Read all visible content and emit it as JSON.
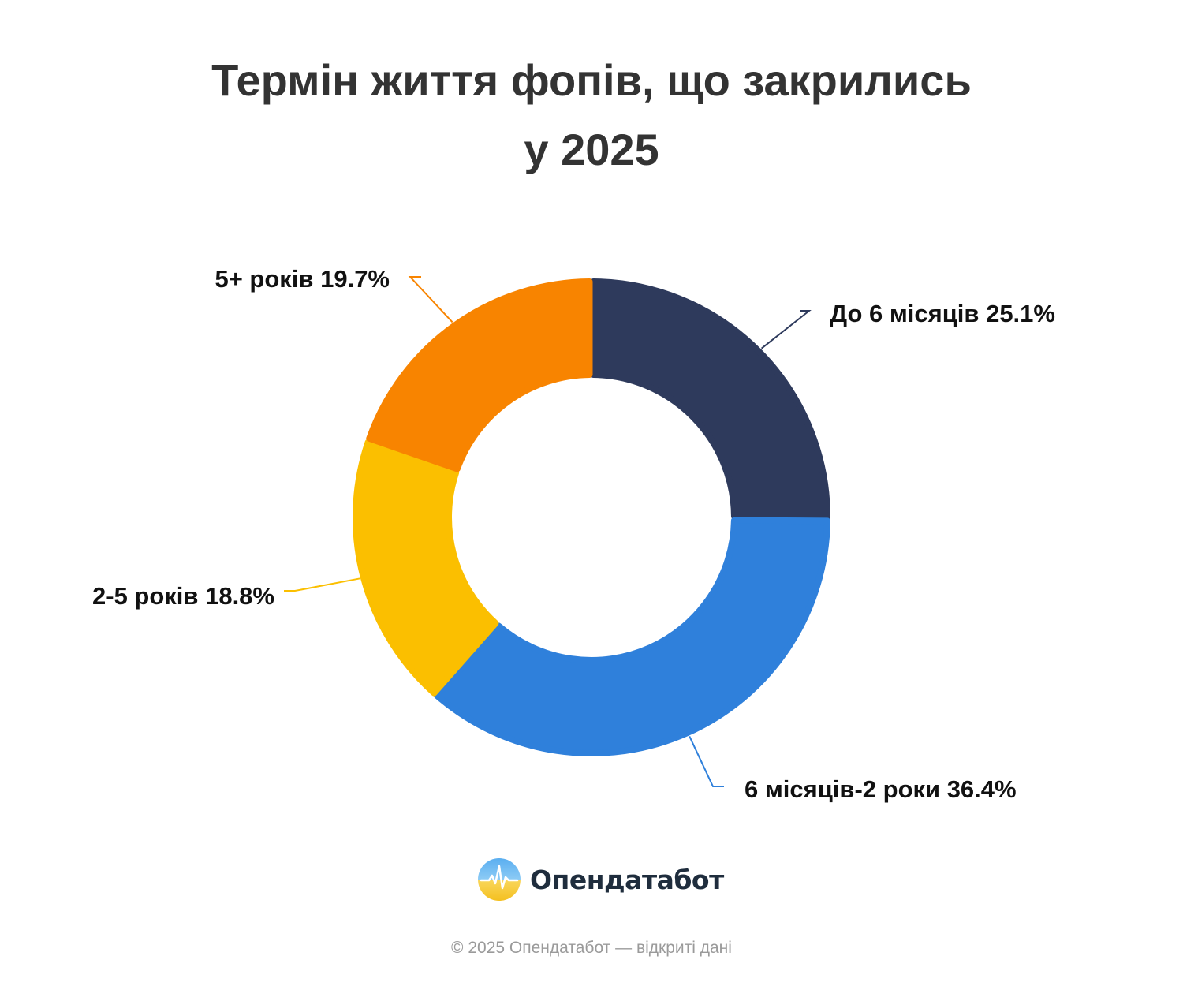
{
  "title": {
    "line1": "Термін життя фопів, що закрились",
    "line2": "у 2025"
  },
  "chart_data": {
    "type": "pie",
    "variant": "donut",
    "title": "Термін життя фопів, що закрились у 2025",
    "unit": "%",
    "slices": [
      {
        "label": "До 6 місяців",
        "value": 25.1,
        "color": "#2e3a5c"
      },
      {
        "label": "6 місяців-2 роки",
        "value": 36.4,
        "color": "#2f80db"
      },
      {
        "label": "2-5 років",
        "value": 18.8,
        "color": "#fbbf00"
      },
      {
        "label": "5+ років",
        "value": 19.7,
        "color": "#f88400"
      }
    ],
    "legend": "none"
  },
  "brand": {
    "name": "Опендатабот",
    "logo_icon": "opendatabot-logo-icon"
  },
  "footer": {
    "text": "© 2025 Опендатабот — відкриті дані"
  }
}
